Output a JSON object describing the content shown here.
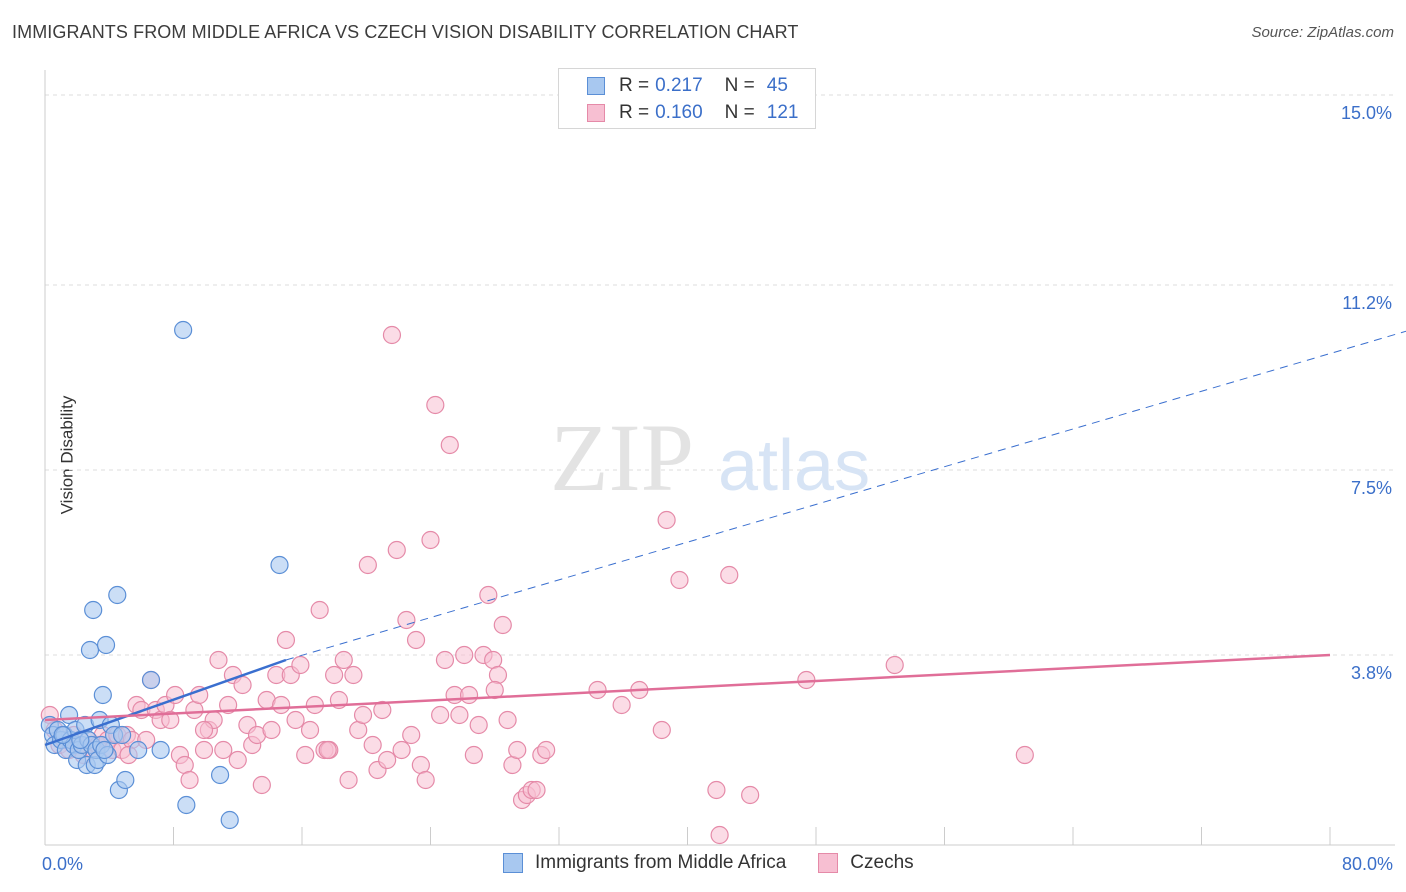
{
  "title": "IMMIGRANTS FROM MIDDLE AFRICA VS CZECH VISION DISABILITY CORRELATION CHART",
  "source": "Source: ZipAtlas.com",
  "watermark": {
    "zip": "ZIP",
    "atlas": "atlas"
  },
  "legend": {
    "series1": {
      "r_label": "R =",
      "r_value": "0.217",
      "n_label": "N =",
      "n_value": "45"
    },
    "series2": {
      "r_label": "R =",
      "r_value": "0.160",
      "n_label": "N =",
      "n_value": "121"
    }
  },
  "colors": {
    "blue_fill": "#a8c8f0",
    "blue_stroke": "#5b8fd6",
    "blue_line": "#3a6fcf",
    "pink_fill": "#f7bfd2",
    "pink_stroke": "#e58aa8",
    "pink_line": "#e06e98",
    "grid": "#dddddd",
    "tick_text": "#3b6fc9"
  },
  "chart_data": {
    "type": "scatter",
    "title": "IMMIGRANTS FROM MIDDLE AFRICA VS CZECH VISION DISABILITY CORRELATION CHART",
    "xlabel": "",
    "ylabel": "Vision Disability",
    "xlim": [
      0,
      80
    ],
    "ylim": [
      0,
      15.5
    ],
    "x_tick_labels": [
      "0.0%",
      "80.0%"
    ],
    "y_ticks": [
      3.8,
      7.5,
      11.2,
      15.0
    ],
    "y_tick_labels": [
      "3.8%",
      "7.5%",
      "11.2%",
      "15.0%"
    ],
    "series": [
      {
        "name": "Immigrants from Middle Africa",
        "color": "blue",
        "trend": {
          "x": [
            0,
            15
          ],
          "y": [
            2.0,
            3.7
          ],
          "dashed_to": [
            85,
            10.3
          ]
        },
        "points": [
          [
            0.3,
            2.4
          ],
          [
            0.5,
            2.2
          ],
          [
            0.6,
            2.0
          ],
          [
            0.8,
            2.3
          ],
          [
            1.0,
            2.1
          ],
          [
            1.2,
            2.2
          ],
          [
            1.3,
            1.9
          ],
          [
            1.5,
            2.6
          ],
          [
            1.6,
            2.1
          ],
          [
            1.8,
            2.0
          ],
          [
            1.9,
            2.3
          ],
          [
            2.0,
            1.7
          ],
          [
            2.1,
            1.9
          ],
          [
            2.3,
            2.0
          ],
          [
            2.5,
            2.4
          ],
          [
            2.6,
            1.6
          ],
          [
            2.7,
            2.1
          ],
          [
            2.8,
            3.9
          ],
          [
            2.9,
            2.0
          ],
          [
            3.0,
            4.7
          ],
          [
            3.1,
            1.6
          ],
          [
            3.2,
            1.9
          ],
          [
            3.3,
            1.7
          ],
          [
            3.4,
            2.5
          ],
          [
            3.5,
            2.0
          ],
          [
            3.6,
            3.0
          ],
          [
            3.8,
            4.0
          ],
          [
            3.9,
            1.8
          ],
          [
            4.1,
            2.4
          ],
          [
            4.3,
            2.2
          ],
          [
            4.5,
            5.0
          ],
          [
            4.6,
            1.1
          ],
          [
            4.8,
            2.2
          ],
          [
            5.0,
            1.3
          ],
          [
            5.8,
            1.9
          ],
          [
            6.6,
            3.3
          ],
          [
            7.2,
            1.9
          ],
          [
            8.6,
            10.3
          ],
          [
            8.8,
            0.8
          ],
          [
            10.9,
            1.4
          ],
          [
            11.5,
            0.5
          ],
          [
            14.6,
            5.6
          ],
          [
            3.7,
            1.9
          ],
          [
            2.2,
            2.1
          ],
          [
            1.1,
            2.2
          ]
        ]
      },
      {
        "name": "Czechs",
        "color": "pink",
        "trend": {
          "x": [
            0,
            80
          ],
          "y": [
            2.5,
            3.8
          ]
        },
        "points": [
          [
            0.3,
            2.6
          ],
          [
            0.6,
            2.3
          ],
          [
            0.9,
            2.0
          ],
          [
            1.2,
            2.1
          ],
          [
            1.5,
            1.9
          ],
          [
            1.8,
            2.2
          ],
          [
            2.1,
            2.0
          ],
          [
            2.4,
            1.8
          ],
          [
            2.7,
            2.1
          ],
          [
            3.0,
            1.9
          ],
          [
            3.3,
            2.0
          ],
          [
            3.6,
            2.2
          ],
          [
            3.9,
            2.1
          ],
          [
            4.2,
            1.9
          ],
          [
            4.5,
            2.2
          ],
          [
            4.8,
            1.9
          ],
          [
            5.1,
            2.2
          ],
          [
            5.4,
            2.1
          ],
          [
            5.7,
            2.8
          ],
          [
            6.0,
            2.7
          ],
          [
            6.3,
            2.1
          ],
          [
            6.6,
            3.3
          ],
          [
            6.9,
            2.7
          ],
          [
            7.2,
            2.5
          ],
          [
            7.5,
            2.8
          ],
          [
            7.8,
            2.5
          ],
          [
            8.1,
            3.0
          ],
          [
            8.4,
            1.8
          ],
          [
            8.7,
            1.6
          ],
          [
            9.0,
            1.3
          ],
          [
            9.3,
            2.7
          ],
          [
            9.6,
            3.0
          ],
          [
            9.9,
            1.9
          ],
          [
            10.2,
            2.3
          ],
          [
            10.5,
            2.5
          ],
          [
            10.8,
            3.7
          ],
          [
            11.1,
            1.9
          ],
          [
            11.4,
            2.8
          ],
          [
            11.7,
            3.4
          ],
          [
            12.0,
            1.7
          ],
          [
            12.3,
            3.2
          ],
          [
            12.6,
            2.4
          ],
          [
            12.9,
            2.0
          ],
          [
            13.2,
            2.2
          ],
          [
            13.5,
            1.2
          ],
          [
            13.8,
            2.9
          ],
          [
            14.1,
            2.3
          ],
          [
            14.4,
            3.4
          ],
          [
            14.7,
            2.8
          ],
          [
            15.0,
            4.1
          ],
          [
            15.3,
            3.4
          ],
          [
            15.6,
            2.5
          ],
          [
            15.9,
            3.6
          ],
          [
            16.2,
            1.8
          ],
          [
            16.5,
            2.3
          ],
          [
            16.8,
            2.8
          ],
          [
            17.1,
            4.7
          ],
          [
            17.4,
            1.9
          ],
          [
            17.7,
            1.9
          ],
          [
            18.0,
            3.4
          ],
          [
            18.3,
            2.9
          ],
          [
            18.6,
            3.7
          ],
          [
            18.9,
            1.3
          ],
          [
            19.2,
            3.4
          ],
          [
            19.5,
            2.3
          ],
          [
            19.8,
            2.6
          ],
          [
            20.1,
            5.6
          ],
          [
            20.4,
            2.0
          ],
          [
            20.7,
            1.5
          ],
          [
            21.0,
            2.7
          ],
          [
            21.3,
            1.7
          ],
          [
            21.6,
            10.2
          ],
          [
            21.9,
            5.9
          ],
          [
            22.2,
            1.9
          ],
          [
            22.5,
            4.5
          ],
          [
            22.8,
            2.2
          ],
          [
            23.1,
            4.1
          ],
          [
            23.4,
            1.6
          ],
          [
            23.7,
            1.3
          ],
          [
            24.0,
            6.1
          ],
          [
            24.3,
            8.8
          ],
          [
            24.6,
            2.6
          ],
          [
            24.9,
            3.7
          ],
          [
            25.2,
            8.0
          ],
          [
            25.5,
            3.0
          ],
          [
            25.8,
            2.6
          ],
          [
            26.1,
            3.8
          ],
          [
            26.4,
            3.0
          ],
          [
            26.7,
            1.8
          ],
          [
            27.0,
            2.4
          ],
          [
            27.3,
            3.8
          ],
          [
            27.6,
            5.0
          ],
          [
            27.9,
            3.7
          ],
          [
            28.2,
            3.4
          ],
          [
            28.5,
            4.4
          ],
          [
            28.8,
            2.5
          ],
          [
            29.1,
            1.6
          ],
          [
            29.4,
            1.9
          ],
          [
            29.7,
            0.9
          ],
          [
            30.0,
            1.0
          ],
          [
            30.3,
            1.1
          ],
          [
            30.6,
            1.1
          ],
          [
            30.9,
            1.8
          ],
          [
            31.2,
            1.9
          ],
          [
            34.4,
            3.1
          ],
          [
            35.9,
            2.8
          ],
          [
            37.0,
            3.1
          ],
          [
            38.4,
            2.3
          ],
          [
            38.7,
            6.5
          ],
          [
            39.5,
            5.3
          ],
          [
            41.8,
            1.1
          ],
          [
            42.0,
            0.2
          ],
          [
            42.6,
            5.4
          ],
          [
            43.9,
            1.0
          ],
          [
            47.4,
            3.3
          ],
          [
            52.9,
            3.6
          ],
          [
            61.0,
            1.8
          ],
          [
            28.0,
            3.1
          ],
          [
            17.6,
            1.9
          ],
          [
            9.9,
            2.3
          ],
          [
            5.2,
            1.8
          ]
        ]
      }
    ]
  }
}
